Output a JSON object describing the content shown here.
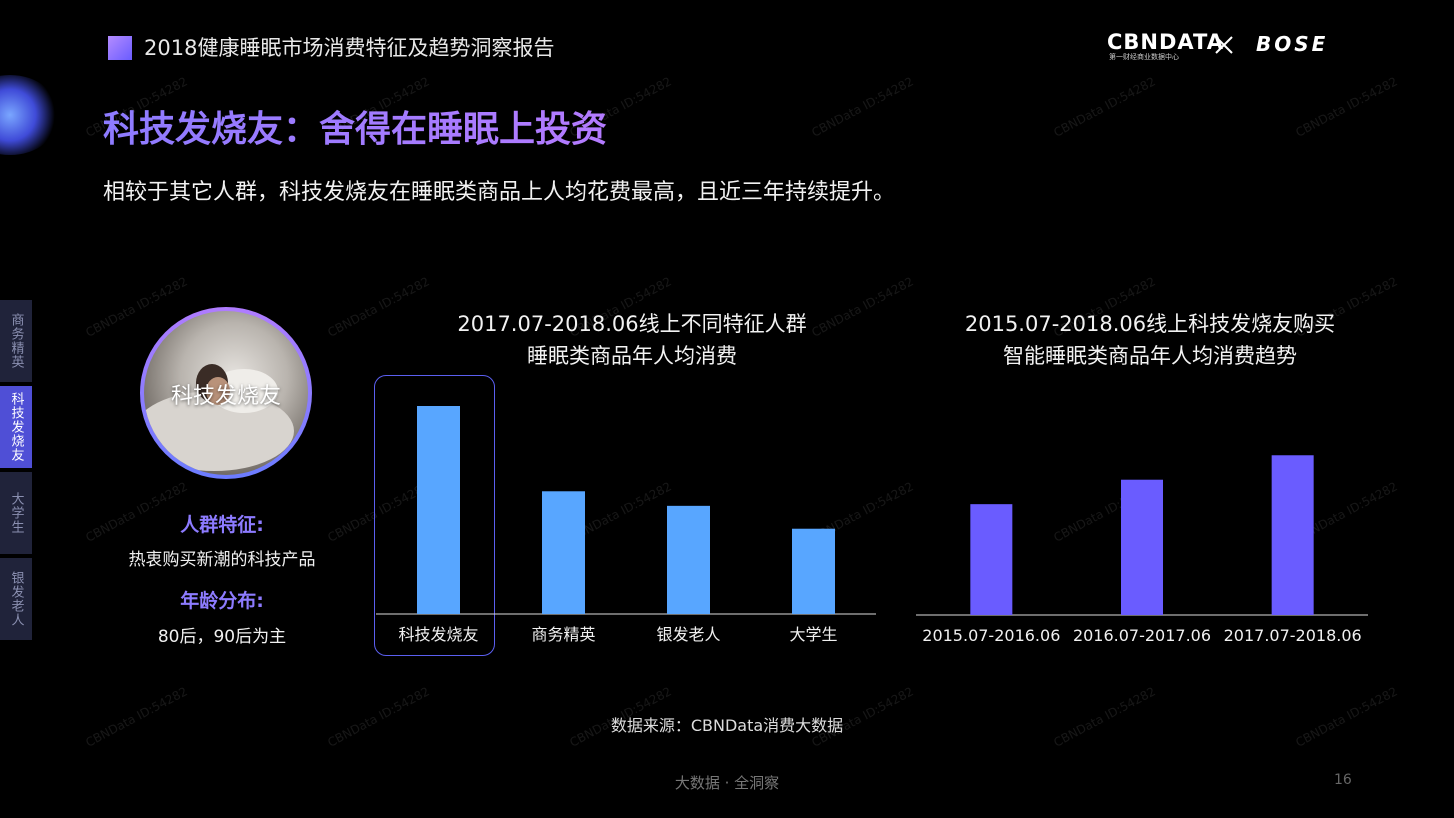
{
  "header": {
    "report_title": "2018健康睡眠市场消费特征及趋势洞察报告",
    "logo_cbn": "CBNDATA",
    "logo_cbn_sub": "第一财经商业数据中心",
    "logo_bose": "BOSE"
  },
  "headline": "科技发烧友：舍得在睡眠上投资",
  "subheadline": "相较于其它人群，科技发烧友在睡眠类商品上人均花费最高，且近三年持续提升。",
  "side_tabs": [
    {
      "label": "商务精英",
      "active": false
    },
    {
      "label": "科技发烧友",
      "active": true
    },
    {
      "label": "大学生",
      "active": false
    },
    {
      "label": "银发老人",
      "active": false
    }
  ],
  "persona": {
    "name": "科技发烧友",
    "trait_heading": "人群特征:",
    "trait_value": "热衷购买新潮的科技产品",
    "age_heading": "年龄分布:",
    "age_value": "80后，90后为主"
  },
  "chart_data": [
    {
      "type": "bar",
      "title_line1": "2017.07-2018.06线上不同特征人群",
      "title_line2": "睡眠类商品年人均消费",
      "categories": [
        "科技发烧友",
        "商务精英",
        "银发老人",
        "大学生"
      ],
      "values": [
        100,
        59,
        52,
        41
      ],
      "ylim": [
        0,
        100
      ],
      "color": "#58a6ff",
      "highlighted_category": "科技发烧友",
      "highlight_color": "#5b5ff0",
      "grid": false,
      "legend": false
    },
    {
      "type": "bar",
      "title_line1": "2015.07-2018.06线上科技发烧友购买",
      "title_line2": "智能睡眠类商品年人均消费趋势",
      "categories": [
        "2015.07-2016.06",
        "2016.07-2017.06",
        "2017.07-2018.06"
      ],
      "values": [
        68,
        83,
        98
      ],
      "ylim": [
        0,
        100
      ],
      "color": "#6a5cff",
      "grid": false,
      "legend": false
    }
  ],
  "source": "数据来源：CBNData消费大数据",
  "footer": "大数据 · 全洞察",
  "page_number": "16",
  "watermark": "CBNData ID:54282",
  "colors": {
    "accent": "#8d7bff",
    "background": "#000000",
    "tab_active": "#4f4fd6"
  }
}
